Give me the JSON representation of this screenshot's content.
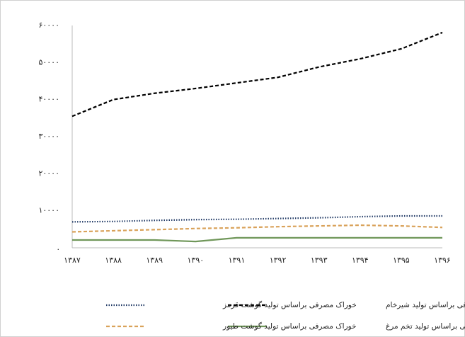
{
  "chart_data": {
    "type": "line",
    "categories": [
      "۱۳۸۷",
      "۱۳۸۸",
      "۱۳۸۹",
      "۱۳۹۰",
      "۱۳۹۱",
      "۱۳۹۲",
      "۱۳۹۳",
      "۱۳۹۴",
      "۱۳۹۵",
      "۱۳۹۶"
    ],
    "series": [
      {
        "name": "خوراک مصرفی براساس تولید شیرخام",
        "color": "#000000",
        "dash": "5,3",
        "values": [
          35500,
          40000,
          41700,
          43000,
          44500,
          46000,
          48800,
          51000,
          53700,
          58100
        ]
      },
      {
        "name": "خوراک مصرفی براساس تولید گوشت قرمز",
        "color": "#1f3864",
        "dash": "1.5,2",
        "values": [
          7000,
          7100,
          7400,
          7600,
          7700,
          7900,
          8100,
          8400,
          8600,
          8600
        ]
      },
      {
        "name": "خوراک مصرفی براساس تولید تخم مرغ",
        "color": "#70975a",
        "dash": "",
        "values": [
          2100,
          2100,
          2100,
          1700,
          2700,
          2700,
          2700,
          2700,
          2700,
          2700
        ]
      },
      {
        "name": "خوراک مصرفی براساس تولید گوشت طیور",
        "color": "#d9a25a",
        "dash": "5,3",
        "values": [
          4300,
          4600,
          4900,
          5200,
          5400,
          5700,
          5900,
          6100,
          5900,
          5500
        ]
      }
    ],
    "ylim": [
      0,
      60000
    ],
    "yticks": [
      {
        "value": 0,
        "label": "."
      },
      {
        "value": 10000,
        "label": "۱۰۰۰۰"
      },
      {
        "value": 20000,
        "label": "۲۰۰۰۰"
      },
      {
        "value": 30000,
        "label": "۳۰۰۰۰"
      },
      {
        "value": 40000,
        "label": "۴۰۰۰۰"
      },
      {
        "value": 50000,
        "label": "۵۰۰۰۰"
      },
      {
        "value": 60000,
        "label": "۶۰۰۰۰"
      }
    ],
    "grid": false,
    "legend": "bottom"
  }
}
